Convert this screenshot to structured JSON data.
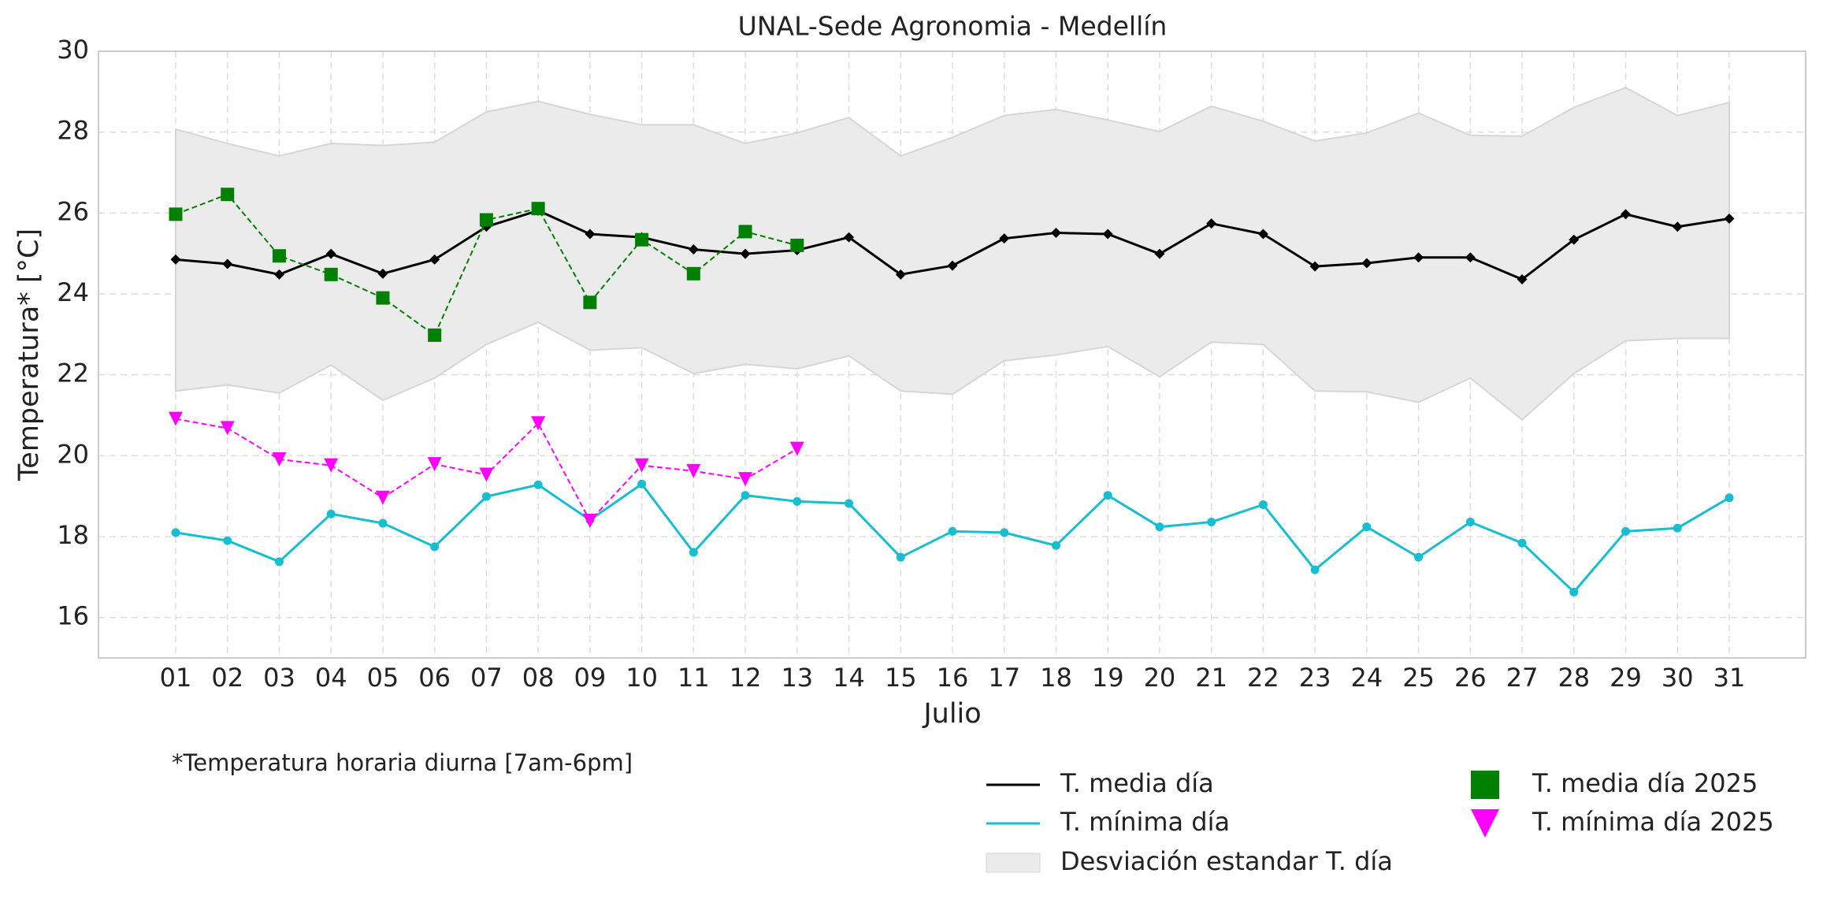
{
  "chart_data": {
    "type": "line",
    "title": "UNAL-Sede Agronomia - Medellín",
    "x_label": "Julio",
    "y_label": "Temperatura* [°C]",
    "note": "*Temperatura horaria diurna [7am-6pm]",
    "categories": [
      "01",
      "02",
      "03",
      "04",
      "05",
      "06",
      "07",
      "08",
      "09",
      "10",
      "11",
      "12",
      "13",
      "14",
      "15",
      "16",
      "17",
      "18",
      "19",
      "20",
      "21",
      "22",
      "23",
      "24",
      "25",
      "26",
      "27",
      "28",
      "29",
      "30",
      "31"
    ],
    "ylim": [
      15,
      30
    ],
    "yticks": [
      16,
      18,
      20,
      22,
      24,
      26,
      28,
      30
    ],
    "grid": true,
    "band": {
      "name": "Desviación estandar T. día",
      "color": "#ebebeb",
      "upper": [
        28.07,
        27.72,
        27.41,
        27.72,
        27.67,
        27.75,
        28.5,
        28.76,
        28.44,
        28.18,
        28.18,
        27.72,
        27.98,
        28.36,
        27.41,
        27.87,
        28.41,
        28.56,
        28.3,
        28.01,
        28.64,
        28.27,
        27.78,
        27.98,
        28.47,
        27.92,
        27.9,
        28.61,
        29.1,
        28.41,
        28.73
      ],
      "lower": [
        21.6,
        21.75,
        21.55,
        22.24,
        21.37,
        21.92,
        22.75,
        23.3,
        22.61,
        22.67,
        22.03,
        22.26,
        22.15,
        22.47,
        21.6,
        21.52,
        22.35,
        22.49,
        22.7,
        21.95,
        22.81,
        22.75,
        21.6,
        21.58,
        21.32,
        21.92,
        20.89,
        22.03,
        22.84,
        22.9,
        22.9
      ]
    },
    "series": [
      {
        "name": "T. media día",
        "color": "#000000",
        "marker": "diamond",
        "linestyle": "solid",
        "values": [
          24.85,
          24.74,
          24.48,
          24.99,
          24.5,
          24.85,
          25.66,
          26.06,
          25.48,
          25.4,
          25.1,
          24.99,
          25.08,
          25.4,
          24.48,
          24.7,
          25.37,
          25.51,
          25.48,
          24.99,
          25.74,
          25.48,
          24.68,
          24.76,
          24.9,
          24.9,
          24.36,
          25.34,
          25.97,
          25.66,
          25.86
        ]
      },
      {
        "name": "T. mínima día",
        "color": "#17becf",
        "marker": "circle",
        "linestyle": "solid",
        "values": [
          18.1,
          17.9,
          17.38,
          18.56,
          18.33,
          17.75,
          18.99,
          19.28,
          18.41,
          19.3,
          17.61,
          19.02,
          18.87,
          18.82,
          17.49,
          18.13,
          18.1,
          17.78,
          19.02,
          18.24,
          18.36,
          18.79,
          17.18,
          18.24,
          17.49,
          18.36,
          17.84,
          16.63,
          18.13,
          18.21,
          18.96
        ]
      },
      {
        "name": "T. media día 2025",
        "color": "#008000",
        "marker": "square",
        "linestyle": "dashed",
        "values": [
          25.97,
          26.46,
          24.94,
          24.48,
          23.9,
          22.98,
          25.83,
          26.11,
          23.79,
          25.34,
          24.5,
          25.54,
          25.2,
          null,
          null,
          null,
          null,
          null,
          null,
          null,
          null,
          null,
          null,
          null,
          null,
          null,
          null,
          null,
          null,
          null,
          null
        ]
      },
      {
        "name": "T. mínima día 2025",
        "color": "#ff00ff",
        "marker": "triangle",
        "linestyle": "dashed",
        "values": [
          20.91,
          20.68,
          19.91,
          19.76,
          18.96,
          19.79,
          19.53,
          20.8,
          18.39,
          19.76,
          19.62,
          19.42,
          20.17,
          null,
          null,
          null,
          null,
          null,
          null,
          null,
          null,
          null,
          null,
          null,
          null,
          null,
          null,
          null,
          null,
          null,
          null
        ]
      }
    ]
  }
}
